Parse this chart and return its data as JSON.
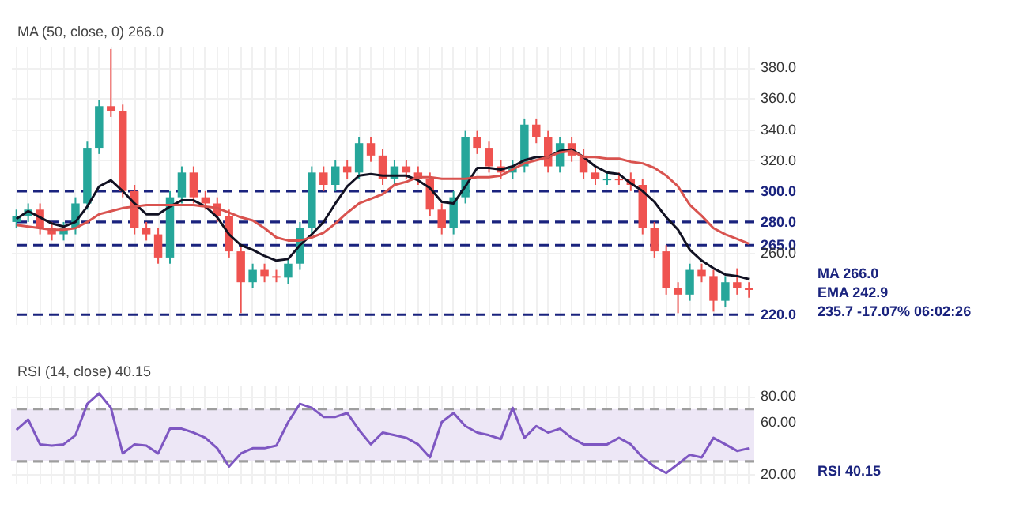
{
  "chart_data": [
    {
      "type": "candlestick",
      "categories": [
        null,
        null,
        null,
        null,
        null,
        null,
        null,
        null,
        null,
        null,
        null,
        null,
        null,
        null,
        null,
        null,
        null,
        null,
        null,
        null,
        null,
        null,
        null,
        null,
        null,
        null,
        null,
        null,
        null,
        null,
        null,
        null,
        null,
        null,
        null,
        null,
        null,
        null,
        null,
        null,
        null,
        null,
        null,
        null,
        null,
        null,
        null,
        null,
        null,
        null,
        null,
        null,
        null,
        null,
        null,
        null,
        null,
        null,
        null,
        null,
        null,
        null,
        null
      ],
      "ohlc": [
        [
          280,
          288,
          276,
          284
        ],
        [
          284,
          292,
          280,
          288
        ],
        [
          288,
          292,
          272,
          276
        ],
        [
          276,
          280,
          268,
          272
        ],
        [
          272,
          280,
          268,
          276
        ],
        [
          276,
          296,
          272,
          292
        ],
        [
          292,
          332,
          288,
          328
        ],
        [
          328,
          359,
          324,
          355
        ],
        [
          355,
          392,
          348,
          352
        ],
        [
          352,
          356,
          296,
          300
        ],
        [
          300,
          304,
          272,
          276
        ],
        [
          276,
          280,
          268,
          272
        ],
        [
          272,
          276,
          253,
          257
        ],
        [
          257,
          300,
          253,
          296
        ],
        [
          296,
          316,
          292,
          312
        ],
        [
          312,
          316,
          292,
          296
        ],
        [
          296,
          300,
          288,
          292
        ],
        [
          292,
          296,
          280,
          284
        ],
        [
          284,
          288,
          257,
          261
        ],
        [
          261,
          265,
          221,
          241
        ],
        [
          241,
          253,
          237,
          249
        ],
        [
          249,
          253,
          241,
          245
        ],
        [
          245,
          249,
          241,
          244
        ],
        [
          244,
          257,
          240,
          253
        ],
        [
          253,
          280,
          249,
          276
        ],
        [
          276,
          316,
          272,
          312
        ],
        [
          312,
          316,
          300,
          304
        ],
        [
          304,
          320,
          300,
          316
        ],
        [
          316,
          320,
          308,
          312
        ],
        [
          312,
          335,
          308,
          331
        ],
        [
          331,
          335,
          319,
          323
        ],
        [
          323,
          327,
          304,
          308
        ],
        [
          308,
          320,
          304,
          316
        ],
        [
          316,
          320,
          308,
          312
        ],
        [
          312,
          316,
          304,
          308
        ],
        [
          308,
          312,
          284,
          288
        ],
        [
          288,
          292,
          272,
          276
        ],
        [
          276,
          300,
          272,
          296
        ],
        [
          296,
          339,
          292,
          335
        ],
        [
          335,
          339,
          324,
          328
        ],
        [
          328,
          332,
          312,
          316
        ],
        [
          316,
          320,
          308,
          312
        ],
        [
          312,
          320,
          308,
          316
        ],
        [
          316,
          347,
          312,
          343
        ],
        [
          343,
          347,
          331,
          335
        ],
        [
          335,
          339,
          312,
          316
        ],
        [
          316,
          335,
          312,
          331
        ],
        [
          331,
          335,
          319,
          323
        ],
        [
          323,
          327,
          308,
          312
        ],
        [
          312,
          316,
          304,
          308
        ],
        [
          308,
          312,
          304,
          307
        ],
        [
          307,
          312,
          304,
          308
        ],
        [
          308,
          312,
          300,
          304
        ],
        [
          304,
          308,
          272,
          276
        ],
        [
          276,
          280,
          257,
          261
        ],
        [
          261,
          265,
          233,
          237
        ],
        [
          237,
          241,
          221,
          233
        ],
        [
          233,
          253,
          229,
          249
        ],
        [
          249,
          253,
          241,
          245
        ],
        [
          245,
          249,
          222,
          229
        ],
        [
          229,
          245,
          225,
          241
        ],
        [
          241,
          250,
          233,
          237
        ],
        [
          237,
          241,
          231,
          236
        ]
      ],
      "colors": [
        "#26a69a",
        "#26a69a",
        "#ef5350",
        "#ef5350",
        "#26a69a",
        "#26a69a",
        "#26a69a",
        "#26a69a",
        "#ef5350",
        "#ef5350",
        "#ef5350",
        "#ef5350",
        "#ef5350",
        "#26a69a",
        "#26a69a",
        "#ef5350",
        "#ef5350",
        "#ef5350",
        "#ef5350",
        "#ef5350",
        "#26a69a",
        "#ef5350",
        "#ef5350",
        "#26a69a",
        "#26a69a",
        "#26a69a",
        "#ef5350",
        "#26a69a",
        "#ef5350",
        "#26a69a",
        "#ef5350",
        "#ef5350",
        "#26a69a",
        "#ef5350",
        "#ef5350",
        "#ef5350",
        "#ef5350",
        "#26a69a",
        "#26a69a",
        "#ef5350",
        "#ef5350",
        "#ef5350",
        "#26a69a",
        "#26a69a",
        "#ef5350",
        "#ef5350",
        "#26a69a",
        "#ef5350",
        "#ef5350",
        "#ef5350",
        "#26a69a",
        "#ef5350",
        "#ef5350",
        "#ef5350",
        "#ef5350",
        "#ef5350",
        "#ef5350",
        "#26a69a",
        "#ef5350",
        "#ef5350",
        "#26a69a",
        "#ef5350",
        "#ef5350"
      ],
      "series": [
        {
          "type": "line",
          "color": "#111122",
          "values": [
            282,
            287,
            283,
            279,
            277,
            280,
            290,
            303,
            307,
            300,
            292,
            285,
            285,
            290,
            294,
            294,
            290,
            283,
            272,
            265,
            262,
            258,
            255,
            256,
            265,
            272,
            280,
            292,
            303,
            310,
            311,
            310,
            310,
            310,
            307,
            302,
            293,
            292,
            303,
            315,
            315,
            314,
            316,
            320,
            322,
            322,
            326,
            327,
            322,
            316,
            312,
            311,
            305,
            300,
            293,
            283,
            275,
            262,
            255,
            250,
            246,
            245,
            243
          ]
        },
        {
          "type": "line",
          "color": "#d9534f",
          "values": [
            278,
            277,
            276,
            275,
            275,
            276,
            280,
            285,
            287,
            289,
            290,
            291,
            291,
            291,
            291,
            291,
            290,
            289,
            286,
            283,
            281,
            276,
            270,
            268,
            268,
            270,
            273,
            279,
            286,
            292,
            295,
            298,
            304,
            306,
            309,
            309,
            308,
            308,
            308,
            309,
            309,
            310,
            314,
            318,
            320,
            322,
            325,
            326,
            322,
            322,
            321,
            321,
            319,
            318,
            315,
            310,
            303,
            291,
            284,
            276,
            272,
            269,
            266
          ]
        }
      ],
      "ylim": [
        214,
        394
      ],
      "yticks": [
        {
          "value": 260,
          "label": "260.0"
        },
        {
          "value": 320,
          "label": "320.0"
        },
        {
          "value": 340,
          "label": "340.0"
        },
        {
          "value": 360,
          "label": "360.0"
        },
        {
          "value": 380,
          "label": "380.0"
        }
      ],
      "ref_lines": [
        {
          "axis": "y",
          "value": 300,
          "label": "300.0",
          "color": "#1a237e",
          "line_style": "dashed"
        },
        {
          "axis": "y",
          "value": 280,
          "label": "280.0",
          "color": "#1a237e",
          "line_style": "dashed"
        },
        {
          "axis": "y",
          "value": 265,
          "label": "265.0",
          "color": "#1a237e",
          "line_style": "dashed"
        },
        {
          "axis": "y",
          "value": 220,
          "label": "220.0",
          "color": "#1a237e",
          "line_style": "dashed"
        }
      ],
      "annotations": [
        "MA (50, close, 0) 266.0",
        "MA 266.0",
        "EMA 242.9",
        "235.7 -17.07% 06:02:26"
      ],
      "grid": true,
      "tick_labels": "y"
    },
    {
      "type": "line",
      "categories": [
        null,
        null,
        null,
        null,
        null,
        null,
        null,
        null,
        null,
        null,
        null,
        null,
        null,
        null,
        null,
        null,
        null,
        null,
        null,
        null,
        null,
        null,
        null,
        null,
        null,
        null,
        null,
        null,
        null,
        null,
        null,
        null,
        null,
        null,
        null,
        null,
        null,
        null,
        null,
        null,
        null,
        null,
        null,
        null,
        null,
        null,
        null,
        null,
        null,
        null,
        null,
        null,
        null,
        null,
        null,
        null,
        null,
        null,
        null,
        null,
        null,
        null,
        null
      ],
      "series": [
        {
          "color": "#7e57c2",
          "values": [
            54,
            62,
            43,
            42,
            43,
            50,
            74,
            82,
            71,
            36,
            43,
            42,
            36,
            55,
            55,
            52,
            48,
            40,
            26,
            36,
            40,
            40,
            42,
            60,
            74,
            71,
            64,
            64,
            67,
            54,
            43,
            52,
            50,
            48,
            43,
            33,
            60,
            67,
            57,
            52,
            50,
            47,
            71,
            48,
            57,
            52,
            55,
            48,
            43,
            43,
            43,
            48,
            43,
            33,
            26,
            21,
            28,
            35,
            33,
            48,
            43,
            38,
            40
          ]
        }
      ],
      "ylim": [
        13,
        88
      ],
      "yticks": [
        {
          "value": 20,
          "label": "20.00"
        },
        {
          "value": 60,
          "label": "60.00"
        },
        {
          "value": 80,
          "label": "80.00"
        }
      ],
      "ref_lines": [
        {
          "axis": "y",
          "value": 70,
          "color": "#9e9e9e",
          "line_style": "dashed"
        },
        {
          "axis": "y",
          "value": 30,
          "color": "#9e9e9e",
          "line_style": "dashed"
        }
      ],
      "bands": [
        {
          "axis": "y",
          "from": 30,
          "to": 70,
          "color": "#ede7f6"
        }
      ],
      "annotations": [
        "RSI (14, close) 40.15",
        "RSI 40.15"
      ],
      "grid": true,
      "tick_labels": "y"
    }
  ]
}
